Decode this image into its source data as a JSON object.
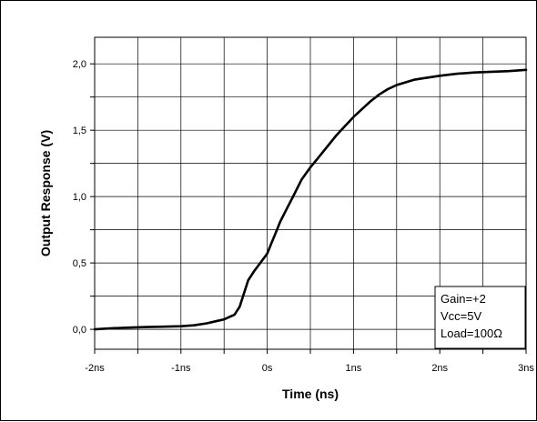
{
  "chart_data": {
    "type": "line",
    "xlabel": "Time (ns)",
    "ylabel": "Output Response (V)",
    "xlim": [
      -2,
      3
    ],
    "ylim": [
      -0.15,
      2.2
    ],
    "x_ticks": [
      -2,
      -1.5,
      -1,
      -0.5,
      0,
      0.5,
      1,
      1.5,
      2,
      2.5,
      3
    ],
    "x_tick_labels": [
      {
        "value": -2,
        "label": "-2ns"
      },
      {
        "value": -1,
        "label": "-1ns"
      },
      {
        "value": 0,
        "label": "0s"
      },
      {
        "value": 1,
        "label": "1ns"
      },
      {
        "value": 2,
        "label": "2ns"
      },
      {
        "value": 3,
        "label": "3ns"
      }
    ],
    "y_ticks": [
      0,
      0.25,
      0.5,
      0.75,
      1.0,
      1.25,
      1.5,
      1.75,
      2.0
    ],
    "y_tick_labels": [
      {
        "value": 0,
        "label": "0,0"
      },
      {
        "value": 0.5,
        "label": "0,5"
      },
      {
        "value": 1.0,
        "label": "1,0"
      },
      {
        "value": 1.5,
        "label": "1,5"
      },
      {
        "value": 2.0,
        "label": "2,0"
      }
    ],
    "grid": true,
    "series": [
      {
        "color": "#000000",
        "points": [
          [
            -2.0,
            0.0
          ],
          [
            -1.8,
            0.008
          ],
          [
            -1.6,
            0.013
          ],
          [
            -1.4,
            0.017
          ],
          [
            -1.2,
            0.02
          ],
          [
            -1.0,
            0.023
          ],
          [
            -0.85,
            0.03
          ],
          [
            -0.7,
            0.045
          ],
          [
            -0.6,
            0.06
          ],
          [
            -0.5,
            0.075
          ],
          [
            -0.45,
            0.09
          ],
          [
            -0.38,
            0.11
          ],
          [
            -0.32,
            0.17
          ],
          [
            -0.27,
            0.27
          ],
          [
            -0.22,
            0.37
          ],
          [
            -0.15,
            0.44
          ],
          [
            -0.08,
            0.5
          ],
          [
            0.0,
            0.57
          ],
          [
            0.05,
            0.65
          ],
          [
            0.1,
            0.73
          ],
          [
            0.15,
            0.81
          ],
          [
            0.22,
            0.9
          ],
          [
            0.3,
            1.0
          ],
          [
            0.4,
            1.13
          ],
          [
            0.5,
            1.22
          ],
          [
            0.6,
            1.3
          ],
          [
            0.7,
            1.38
          ],
          [
            0.8,
            1.46
          ],
          [
            0.9,
            1.53
          ],
          [
            1.0,
            1.6
          ],
          [
            1.1,
            1.66
          ],
          [
            1.2,
            1.72
          ],
          [
            1.3,
            1.77
          ],
          [
            1.4,
            1.81
          ],
          [
            1.5,
            1.84
          ],
          [
            1.6,
            1.86
          ],
          [
            1.7,
            1.88
          ],
          [
            1.8,
            1.89
          ],
          [
            2.0,
            1.91
          ],
          [
            2.2,
            1.925
          ],
          [
            2.4,
            1.935
          ],
          [
            2.6,
            1.94
          ],
          [
            2.8,
            1.945
          ],
          [
            3.0,
            1.955
          ]
        ]
      }
    ],
    "legend_box": {
      "position": "bottom-right",
      "lines": [
        "Gain=+2",
        "Vcc=5V",
        "Load=100Ω"
      ]
    }
  }
}
